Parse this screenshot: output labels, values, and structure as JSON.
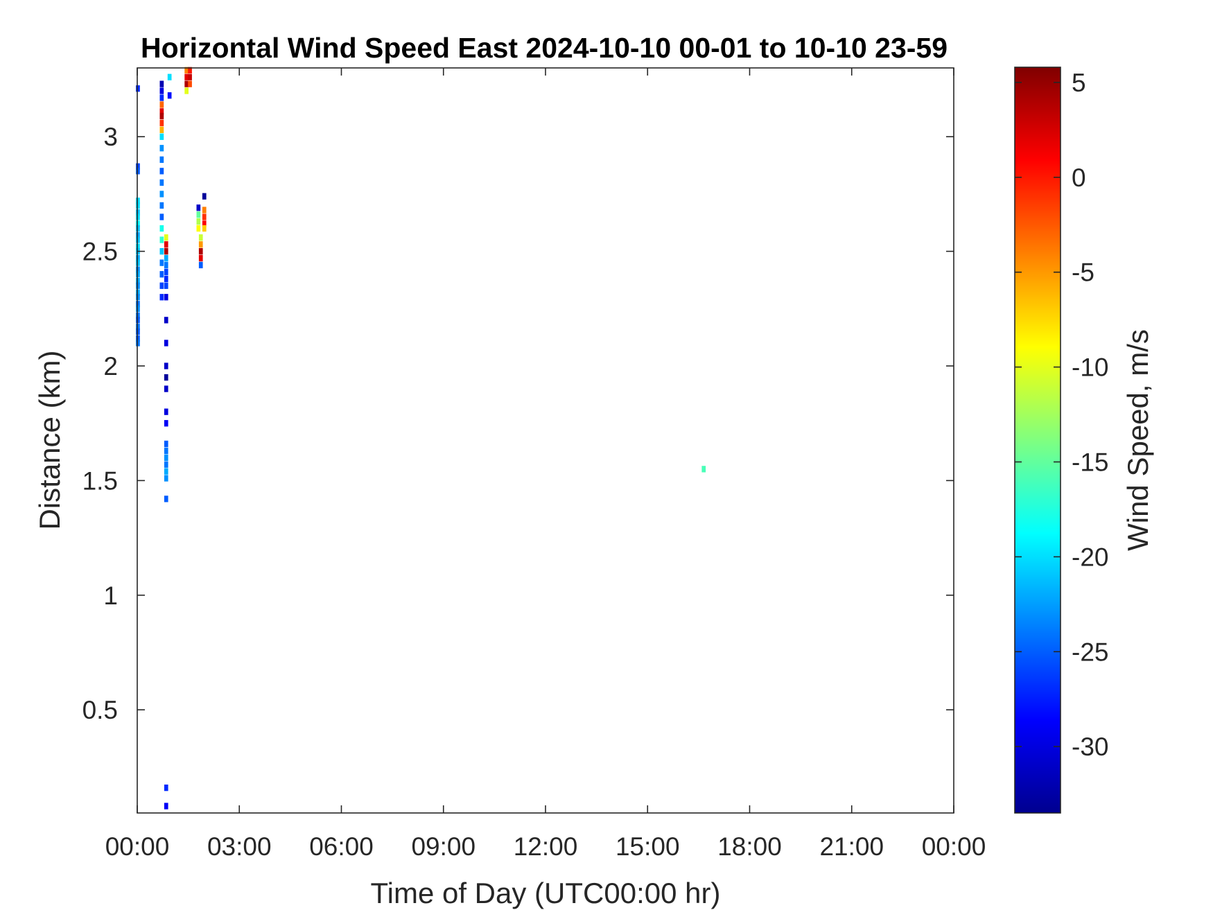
{
  "chart_data": {
    "type": "heatmap",
    "title": "Horizontal Wind Speed East 2024-10-10 00-01 to 10-10 23-59",
    "xlabel": "Time of Day (UTC00:00 hr)",
    "ylabel": "Distance (km)",
    "xlim": [
      0,
      24
    ],
    "ylim": [
      0.05,
      3.3
    ],
    "x_ticks": [
      0,
      3,
      6,
      9,
      12,
      15,
      18,
      21,
      24
    ],
    "x_tick_labels": [
      "00:00",
      "03:00",
      "06:00",
      "09:00",
      "12:00",
      "15:00",
      "18:00",
      "21:00",
      "00:00"
    ],
    "y_ticks": [
      0.5,
      1,
      1.5,
      2,
      2.5,
      3
    ],
    "y_tick_labels": [
      "0.5",
      "1",
      "1.5",
      "2",
      "2.5",
      "3"
    ],
    "grid": false,
    "colormap": "jet",
    "colorbar": {
      "label": "Wind Speed, m/s",
      "clim": [
        -33.5,
        5.8
      ],
      "ticks": [
        5,
        0,
        -5,
        -10,
        -15,
        -20,
        -25,
        -30
      ],
      "tick_labels": [
        "5",
        "0",
        "-5",
        "-10",
        "-15",
        "-20",
        "-25",
        "-30"
      ]
    },
    "cell": {
      "dt_hr": 0.1,
      "dz_km": 0.025
    },
    "cells": [
      [
        0.02,
        3.21,
        -27
      ],
      [
        0.02,
        2.87,
        -26
      ],
      [
        0.02,
        2.85,
        -25
      ],
      [
        0.02,
        2.72,
        -20
      ],
      [
        0.02,
        2.7,
        -20
      ],
      [
        0.02,
        2.67,
        -21
      ],
      [
        0.02,
        2.65,
        -20
      ],
      [
        0.02,
        2.62,
        -19
      ],
      [
        0.02,
        2.6,
        -21
      ],
      [
        0.02,
        2.57,
        -22
      ],
      [
        0.02,
        2.55,
        -21
      ],
      [
        0.02,
        2.52,
        -20
      ],
      [
        0.02,
        2.5,
        -21
      ],
      [
        0.02,
        2.47,
        -22
      ],
      [
        0.02,
        2.45,
        -21
      ],
      [
        0.02,
        2.42,
        -23
      ],
      [
        0.02,
        2.4,
        -22
      ],
      [
        0.02,
        2.37,
        -22
      ],
      [
        0.02,
        2.35,
        -23
      ],
      [
        0.02,
        2.32,
        -22
      ],
      [
        0.02,
        2.3,
        -23
      ],
      [
        0.02,
        2.27,
        -24
      ],
      [
        0.02,
        2.25,
        -23
      ],
      [
        0.02,
        2.22,
        -24
      ],
      [
        0.02,
        2.2,
        -25
      ],
      [
        0.02,
        2.17,
        -24
      ],
      [
        0.02,
        2.15,
        -25
      ],
      [
        0.02,
        2.12,
        -25
      ],
      [
        0.02,
        2.1,
        -24
      ],
      [
        0.72,
        3.23,
        -32
      ],
      [
        0.72,
        3.2,
        -30
      ],
      [
        0.72,
        3.17,
        -27
      ],
      [
        0.72,
        3.14,
        -3
      ],
      [
        0.72,
        3.11,
        2
      ],
      [
        0.72,
        3.09,
        4
      ],
      [
        0.72,
        3.06,
        -1
      ],
      [
        0.72,
        3.03,
        -6
      ],
      [
        0.72,
        3.0,
        -20
      ],
      [
        0.72,
        2.95,
        -23
      ],
      [
        0.72,
        2.9,
        -24
      ],
      [
        0.72,
        2.85,
        -25
      ],
      [
        0.72,
        2.8,
        -24
      ],
      [
        0.72,
        2.75,
        -23
      ],
      [
        0.72,
        2.7,
        -24
      ],
      [
        0.72,
        2.65,
        -25
      ],
      [
        0.72,
        2.6,
        -18
      ],
      [
        0.72,
        2.55,
        -17
      ],
      [
        0.72,
        2.5,
        -21
      ],
      [
        0.72,
        2.45,
        -24
      ],
      [
        0.72,
        2.4,
        -25
      ],
      [
        0.72,
        2.35,
        -26
      ],
      [
        0.72,
        2.3,
        -27
      ],
      [
        0.85,
        2.56,
        -10
      ],
      [
        0.85,
        2.53,
        2
      ],
      [
        0.85,
        2.5,
        4
      ],
      [
        0.85,
        2.47,
        -22
      ],
      [
        0.85,
        2.44,
        -24
      ],
      [
        0.85,
        2.41,
        -26
      ],
      [
        0.85,
        2.38,
        -27
      ],
      [
        0.85,
        2.35,
        -26
      ],
      [
        0.85,
        2.3,
        -30
      ],
      [
        0.85,
        2.2,
        -31
      ],
      [
        0.85,
        2.1,
        -30
      ],
      [
        0.85,
        2.0,
        -31
      ],
      [
        0.85,
        1.95,
        -33
      ],
      [
        0.85,
        1.9,
        -31
      ],
      [
        0.85,
        1.8,
        -30
      ],
      [
        0.85,
        1.75,
        -29
      ],
      [
        0.85,
        1.66,
        -25
      ],
      [
        0.85,
        1.63,
        -24
      ],
      [
        0.85,
        1.6,
        -23
      ],
      [
        0.85,
        1.57,
        -24
      ],
      [
        0.85,
        1.54,
        -22
      ],
      [
        0.85,
        1.51,
        -23
      ],
      [
        0.85,
        1.42,
        -25
      ],
      [
        0.85,
        0.16,
        -27
      ],
      [
        0.85,
        0.08,
        -29
      ],
      [
        0.95,
        3.26,
        -20
      ],
      [
        0.95,
        3.18,
        -28
      ],
      [
        1.45,
        3.29,
        -4
      ],
      [
        1.45,
        3.26,
        2
      ],
      [
        1.45,
        3.23,
        4
      ],
      [
        1.45,
        3.2,
        -10
      ],
      [
        1.55,
        3.29,
        0
      ],
      [
        1.55,
        3.26,
        3
      ],
      [
        1.55,
        3.23,
        -2
      ],
      [
        1.8,
        2.69,
        -31
      ],
      [
        1.8,
        2.66,
        -15
      ],
      [
        1.8,
        2.63,
        -12
      ],
      [
        1.8,
        2.6,
        -9
      ],
      [
        1.87,
        2.56,
        -11
      ],
      [
        1.87,
        2.53,
        -5
      ],
      [
        1.87,
        2.5,
        4
      ],
      [
        1.87,
        2.47,
        2
      ],
      [
        1.87,
        2.44,
        -25
      ],
      [
        1.97,
        2.74,
        -33
      ],
      [
        1.97,
        2.68,
        -4
      ],
      [
        1.97,
        2.65,
        -1
      ],
      [
        1.97,
        2.62,
        1
      ],
      [
        1.97,
        2.6,
        -7
      ],
      [
        16.65,
        1.55,
        -16
      ]
    ]
  }
}
